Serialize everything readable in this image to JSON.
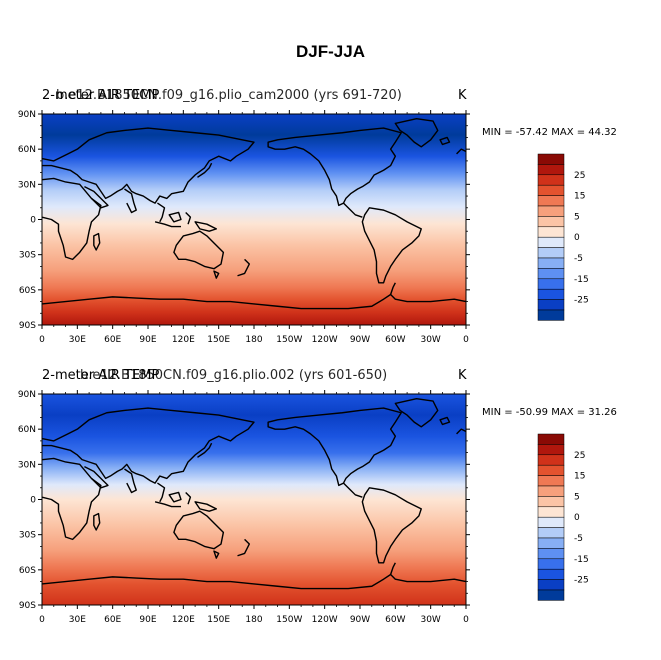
{
  "figure": {
    "title": "DJF-JJA"
  },
  "panels": [
    {
      "title_a": "2-meter AIR TEMP",
      "title_b": "b.e12.B1850CN.f09_g16.plio_cam2000 (yrs 691-720)",
      "units": "K",
      "min_label": "MIN = -57.42",
      "max_label": "MAX =  44.32",
      "min": -57.42,
      "max": 44.32
    },
    {
      "title_a": "2-meter AIR TEMP",
      "title_b": "b.e12.B1850CN.f09_g16.plio.002 (yrs 601-650)",
      "units": "K",
      "min_label": "MIN = -50.99",
      "max_label": "MAX =  31.26",
      "min": -50.99,
      "max": 31.26
    }
  ],
  "map": {
    "projection": "cylindrical-equidistant",
    "central_longitude": 180,
    "lat_range": [
      -90,
      90
    ],
    "lon_range": [
      0,
      360
    ],
    "lat_ticks": [
      "90N",
      "60N",
      "30N",
      "0",
      "30S",
      "60S",
      "90S"
    ],
    "lat_tick_values": [
      90,
      60,
      30,
      0,
      -30,
      -60,
      -90
    ],
    "lon_ticks": [
      "0",
      "30E",
      "60E",
      "90E",
      "120E",
      "150E",
      "180",
      "150W",
      "120W",
      "90W",
      "60W",
      "30W",
      "0"
    ],
    "lon_tick_values": [
      0,
      30,
      60,
      90,
      120,
      150,
      180,
      210,
      240,
      270,
      300,
      330,
      360
    ]
  },
  "colorbar": {
    "colors": [
      "#003b9b",
      "#0a3fc4",
      "#1a54e0",
      "#3870ec",
      "#5e90f2",
      "#87aff5",
      "#b3cdf8",
      "#dfe9fb",
      "#fde5d4",
      "#fbc4a6",
      "#f6a07c",
      "#ef7954",
      "#e3532f",
      "#d0321a",
      "#b0170d",
      "#8a0a05"
    ],
    "labels": [
      "-25",
      "-15",
      "-5",
      "0",
      "5",
      "15",
      "25"
    ]
  },
  "colors": {
    "coast": "#000000",
    "frame": "#000000"
  }
}
